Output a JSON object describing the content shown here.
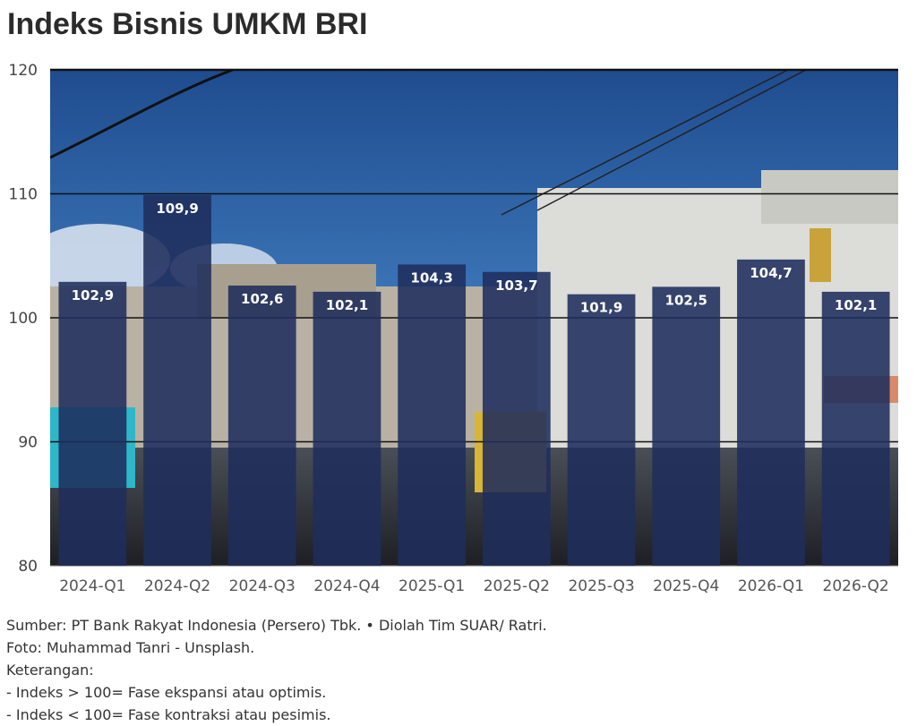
{
  "chart_data": {
    "type": "bar",
    "title": "Indeks Bisnis UMKM BRI",
    "categories": [
      "2024-Q1",
      "2024-Q2",
      "2024-Q3",
      "2024-Q4",
      "2025-Q1",
      "2025-Q2",
      "2025-Q3",
      "2025-Q4",
      "2026-Q1",
      "2026-Q2"
    ],
    "values": [
      102.9,
      109.9,
      102.6,
      102.1,
      104.3,
      103.7,
      101.9,
      102.5,
      104.7,
      102.1
    ],
    "value_labels": [
      "102,9",
      "109,9",
      "102,6",
      "102,1",
      "104,3",
      "103,7",
      "101,9",
      "102,5",
      "104,7",
      "102,1"
    ],
    "ylim": [
      80,
      120
    ],
    "yticks": [
      80,
      90,
      100,
      110,
      120
    ],
    "xlabel": "",
    "ylabel": "",
    "grid": true,
    "bar_color": "#1f2d5c",
    "sky_color": "#2d5f9e"
  },
  "notes": {
    "source": "Sumber: PT Bank Rakyat Indonesia (Persero) Tbk. • Diolah Tim SUAR/ Ratri.",
    "photo": "Foto: Muhammad Tanri - Unsplash.",
    "legend_heading": "Keterangan:",
    "legend_expansion": "- Indeks > 100= Fase ekspansi atau optimis.",
    "legend_contraction": "- Indeks < 100= Fase kontraksi atau pesimis."
  }
}
